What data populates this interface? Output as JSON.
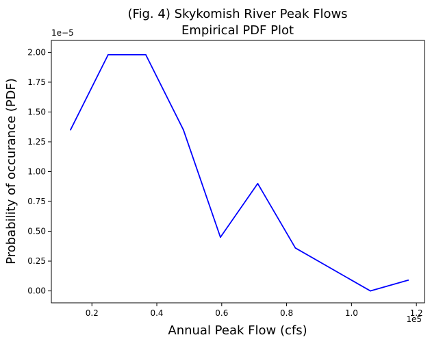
{
  "chart_data": {
    "type": "line",
    "title_line1": "(Fig. 4) Skykomish River Peak Flows",
    "title_line2": "Empirical PDF Plot",
    "xlabel": "Annual Peak Flow (cfs)",
    "ylabel": "Probability of occurance (PDF)",
    "x_offset_label": "1e5",
    "y_offset_label": "1e−5",
    "xlim": [
      0.075,
      1.225
    ],
    "ylim": [
      -0.1,
      2.1
    ],
    "x_ticks": [
      0.2,
      0.4,
      0.6,
      0.8,
      1.0,
      1.2
    ],
    "x_tick_labels": [
      "0.2",
      "0.4",
      "0.6",
      "0.8",
      "1.0",
      "1.2"
    ],
    "y_ticks": [
      0.0,
      0.25,
      0.5,
      0.75,
      1.0,
      1.25,
      1.5,
      1.75,
      2.0
    ],
    "y_tick_labels": [
      "0.00",
      "0.25",
      "0.50",
      "0.75",
      "1.00",
      "1.25",
      "1.50",
      "1.75",
      "2.00"
    ],
    "grid": false,
    "series": [
      {
        "name": "PDF",
        "color": "#0000ff",
        "x": [
          0.134,
          0.25,
          0.366,
          0.482,
          0.596,
          0.711,
          0.827,
          1.058,
          1.175
        ],
        "y": [
          1.35,
          1.98,
          1.98,
          1.35,
          0.45,
          0.9,
          0.36,
          0.0,
          0.09
        ]
      }
    ]
  }
}
